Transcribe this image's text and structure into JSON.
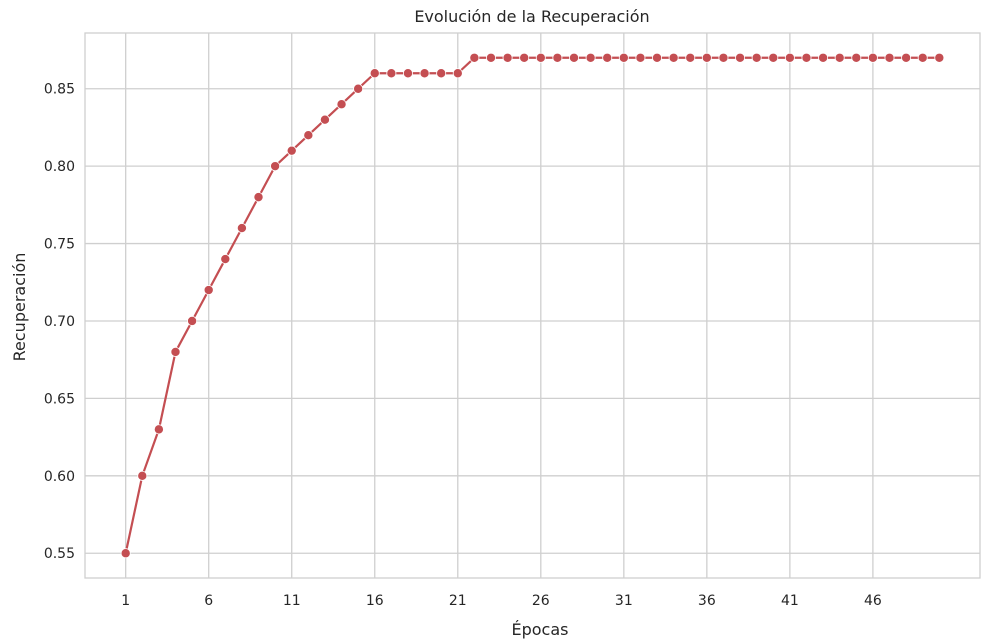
{
  "chart_data": {
    "type": "line",
    "title": "Evolución de la Recuperación",
    "xlabel": "Épocas",
    "ylabel": "Recuperación",
    "x": [
      1,
      2,
      3,
      4,
      5,
      6,
      7,
      8,
      9,
      10,
      11,
      12,
      13,
      14,
      15,
      16,
      17,
      18,
      19,
      20,
      21,
      22,
      23,
      24,
      25,
      26,
      27,
      28,
      29,
      30,
      31,
      32,
      33,
      34,
      35,
      36,
      37,
      38,
      39,
      40,
      41,
      42,
      43,
      44,
      45,
      46,
      47,
      48,
      49,
      50
    ],
    "series": [
      {
        "color": "#c44e52",
        "values": [
          0.55,
          0.6,
          0.63,
          0.68,
          0.7,
          0.72,
          0.74,
          0.76,
          0.78,
          0.8,
          0.81,
          0.82,
          0.83,
          0.84,
          0.85,
          0.86,
          0.86,
          0.86,
          0.86,
          0.86,
          0.86,
          0.87,
          0.87,
          0.87,
          0.87,
          0.87,
          0.87,
          0.87,
          0.87,
          0.87,
          0.87,
          0.87,
          0.87,
          0.87,
          0.87,
          0.87,
          0.87,
          0.87,
          0.87,
          0.87,
          0.87,
          0.87,
          0.87,
          0.87,
          0.87,
          0.87,
          0.87,
          0.87,
          0.87,
          0.87
        ]
      }
    ],
    "x_ticks": [
      "1",
      "6",
      "11",
      "16",
      "21",
      "26",
      "31",
      "36",
      "41",
      "46"
    ],
    "y_ticks": [
      "0.55",
      "0.60",
      "0.65",
      "0.70",
      "0.75",
      "0.80",
      "0.85"
    ],
    "xlim": [
      -1.45,
      52.45
    ],
    "ylim": [
      0.534,
      0.886
    ],
    "grid": true,
    "marker": "circle"
  }
}
